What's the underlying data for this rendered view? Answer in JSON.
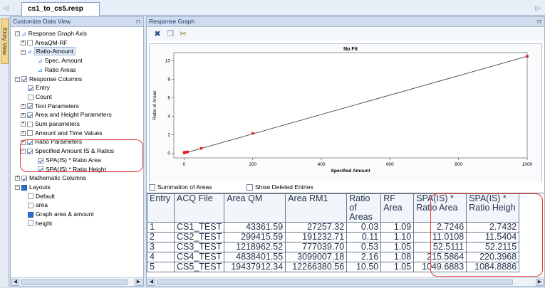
{
  "doc_tab": {
    "title": "cs1_to_cs5.resp"
  },
  "side_tab": {
    "label": "Entry View"
  },
  "left_panel": {
    "title": "Customize Data View"
  },
  "tree": [
    {
      "label": "Response Graph Axis",
      "expander": "−",
      "check": "none",
      "icon": "axis"
    },
    {
      "label": "AreaQM-RF",
      "expander": "+",
      "check": "off"
    },
    {
      "label": "Ratio-Amount",
      "expander": "−",
      "check": "none",
      "icon": "axis",
      "selected": true
    },
    {
      "label": "Spec. Amount",
      "expander": "",
      "check": "none",
      "icon": "axis"
    },
    {
      "label": "Ratio Areas",
      "expander": "",
      "check": "none",
      "icon": "axis"
    },
    {
      "label": "Response Columns",
      "expander": "−",
      "check": "on"
    },
    {
      "label": "Entry",
      "expander": "",
      "check": "on"
    },
    {
      "label": "Count",
      "expander": "",
      "check": "off"
    },
    {
      "label": "Text Parameters",
      "expander": "+",
      "check": "on"
    },
    {
      "label": "Area and Height Parameters",
      "expander": "+",
      "check": "on"
    },
    {
      "label": "Sum parameters",
      "expander": "+",
      "check": "off"
    },
    {
      "label": "Amount and Time Values",
      "expander": "+",
      "check": "off"
    },
    {
      "label": "Ratio Parameters",
      "expander": "+",
      "check": "on"
    },
    {
      "label": "Specified Amount IS & Ratios",
      "expander": "−",
      "check": "on"
    },
    {
      "label": "SPA(IS) * Ratio Area",
      "expander": "",
      "check": "on"
    },
    {
      "label": "SPA(IS) * Ratio Height",
      "expander": "",
      "check": "on"
    },
    {
      "label": "Mathematic Columns",
      "expander": "+",
      "check": "on"
    },
    {
      "label": "Layouts",
      "expander": "−",
      "check": "fill"
    },
    {
      "label": "Default",
      "expander": "",
      "check": "off"
    },
    {
      "label": "area",
      "expander": "",
      "check": "off"
    },
    {
      "label": "Graph area & amount",
      "expander": "",
      "check": "fill"
    },
    {
      "label": "height",
      "expander": "",
      "check": "off"
    }
  ],
  "right_panel": {
    "title": "Response Graph"
  },
  "toolbar": {
    "tools": [
      "crosshair-tool",
      "copy-tool",
      "settings-tool"
    ]
  },
  "chart_data": {
    "type": "scatter",
    "title": "No Fit",
    "xlabel": "Specified Amount",
    "ylabel": "Ratio of Areas",
    "xlim": [
      -30,
      1000
    ],
    "ylim": [
      -0.5,
      10.9
    ],
    "xticks": [
      0,
      200,
      400,
      600,
      800,
      1000
    ],
    "yticks": [
      0,
      2,
      4,
      6,
      8,
      10
    ],
    "points": [
      {
        "x": 0.1,
        "y": 0.03
      },
      {
        "x": 1,
        "y": 0.11
      },
      {
        "x": 5,
        "y": 0.11
      },
      {
        "x": 10,
        "y": 0.15
      },
      {
        "x": 50,
        "y": 0.53
      },
      {
        "x": 200,
        "y": 2.16
      },
      {
        "x": 1000,
        "y": 10.5
      }
    ],
    "fit_line": [
      {
        "x": 0,
        "y": 0
      },
      {
        "x": 1000,
        "y": 10.5
      }
    ],
    "grid": false,
    "point_color": "#e02020",
    "line_color": "#404040"
  },
  "entries_bar": {
    "summation_label": "Summation of Areas",
    "deleted_label": "Show Deleted Entries"
  },
  "table": {
    "columns": [
      "Entry",
      "ACQ File",
      "Area QM",
      "Area RM1",
      "Ratio of Areas",
      "RF Area",
      "SPA(IS) * Ratio Area",
      "SPA(IS) * Ratio Heigh"
    ],
    "rows": [
      [
        "1",
        "CS1_TEST",
        "43361.59",
        "27257.32",
        "0.03",
        "1.09",
        "2.7246",
        "2.7432"
      ],
      [
        "2",
        "CS2_TEST",
        "299415.59",
        "191232.71",
        "0.11",
        "1.10",
        "11.0108",
        "11.5404"
      ],
      [
        "3",
        "CS3_TEST",
        "1218962.52",
        "777039.70",
        "0.53",
        "1.05",
        "52.5111",
        "52.2115"
      ],
      [
        "4",
        "CS4_TEST",
        "4838401.55",
        "3099007.18",
        "2.16",
        "1.08",
        "215.5864",
        "220.3968"
      ],
      [
        "5",
        "CS5_TEST",
        "19437912.34",
        "12266380.56",
        "10.50",
        "1.05",
        "1049.6883",
        "1084.8886"
      ]
    ]
  }
}
